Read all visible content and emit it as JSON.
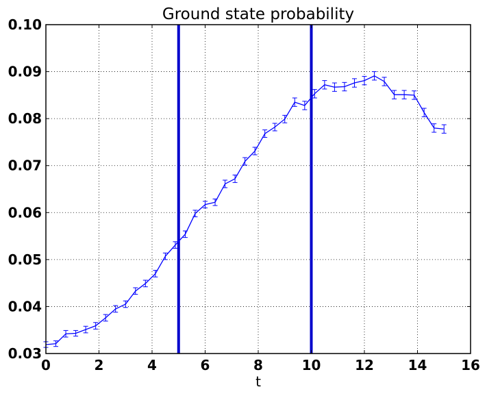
{
  "chart_data": {
    "type": "line",
    "title": "Ground state probability",
    "xlabel": "t",
    "ylabel": "",
    "xlim": [
      0,
      16
    ],
    "ylim": [
      0.03,
      0.1
    ],
    "xticks": [
      0,
      2,
      4,
      6,
      8,
      10,
      12,
      14,
      16
    ],
    "yticks": [
      0.03,
      0.04,
      0.05,
      0.06,
      0.07,
      0.08,
      0.09,
      0.1
    ],
    "xtick_labels": [
      "0",
      "2",
      "4",
      "6",
      "8",
      "10",
      "12",
      "14",
      "16"
    ],
    "ytick_labels": [
      "0.03",
      "0.04",
      "0.05",
      "0.06",
      "0.07",
      "0.08",
      "0.09",
      "0.10"
    ],
    "grid": true,
    "grid_style": "dotted",
    "vertical_lines": [
      5,
      10
    ],
    "vertical_line_color": "#0000cc",
    "series": [
      {
        "color": "#0000ff",
        "x": [
          0.0,
          0.375,
          0.75,
          1.125,
          1.5,
          1.875,
          2.25,
          2.625,
          3.0,
          3.375,
          3.75,
          4.125,
          4.5,
          4.875,
          5.25,
          5.625,
          6.0,
          6.375,
          6.75,
          7.125,
          7.5,
          7.875,
          8.25,
          8.625,
          9.0,
          9.375,
          9.75,
          10.125,
          10.5,
          10.875,
          11.25,
          11.625,
          12.0,
          12.375,
          12.75,
          13.125,
          13.5,
          13.875,
          14.25,
          14.625,
          15.0
        ],
        "y": [
          0.0319,
          0.0321,
          0.0342,
          0.0343,
          0.0351,
          0.0359,
          0.0376,
          0.0395,
          0.0405,
          0.0433,
          0.0449,
          0.047,
          0.0507,
          0.0531,
          0.0554,
          0.0598,
          0.0617,
          0.0622,
          0.0661,
          0.0672,
          0.0709,
          0.0731,
          0.0768,
          0.0782,
          0.0799,
          0.0835,
          0.0828,
          0.0853,
          0.0872,
          0.0867,
          0.0868,
          0.0876,
          0.0881,
          0.0891,
          0.0879,
          0.0851,
          0.0851,
          0.085,
          0.0813,
          0.078,
          0.0778
        ],
        "err": [
          0.0006,
          0.0006,
          0.0007,
          0.0006,
          0.0007,
          0.0007,
          0.0007,
          0.0007,
          0.0007,
          0.0007,
          0.0007,
          0.0007,
          0.0007,
          0.0007,
          0.0007,
          0.0007,
          0.0007,
          0.0007,
          0.0008,
          0.0008,
          0.0008,
          0.0008,
          0.0008,
          0.0008,
          0.0008,
          0.0009,
          0.0009,
          0.0009,
          0.0009,
          0.0009,
          0.0009,
          0.0009,
          0.0009,
          0.0009,
          0.0009,
          0.0009,
          0.0009,
          0.0009,
          0.0009,
          0.0009,
          0.0009
        ]
      }
    ]
  }
}
